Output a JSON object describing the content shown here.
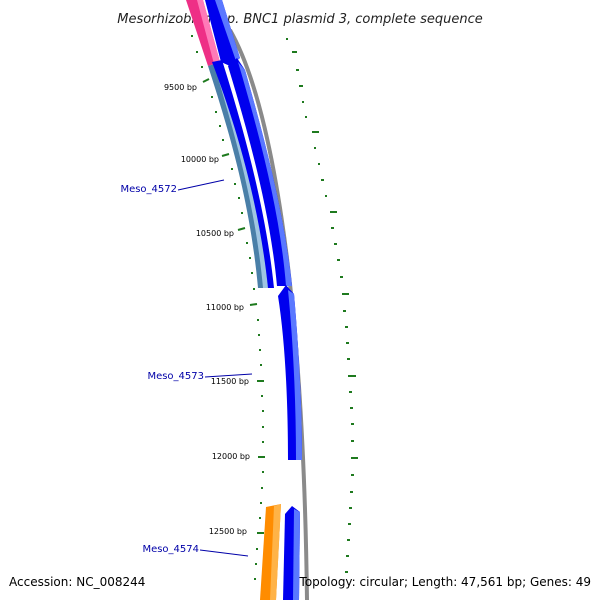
{
  "title": "Mesorhizobium sp. BNC1 plasmid 3, complete sequence",
  "footer": {
    "accession": "Accession: NC_008244",
    "summary": "Topology: circular; Length: 47,561 bp; Genes: 49"
  },
  "scale_labels": [
    "9500 bp",
    "10000 bp",
    "10500 bp",
    "11000 bp",
    "11500 bp",
    "12000 bp",
    "12500 bp"
  ],
  "gene_labels": [
    "Meso_4572",
    "Meso_4573",
    "Meso_4574"
  ],
  "colors": {
    "backbone": "#8a8a8a",
    "cds_blue": "#0000ee",
    "cds_blue_light": "#5a78ff",
    "teal_feature": "#4a7fa8",
    "pink_feature": "#ee2f86",
    "orange_feature": "#ff8c00",
    "gc_marks": "#1e7a1e",
    "label_text": "#0000a8"
  }
}
